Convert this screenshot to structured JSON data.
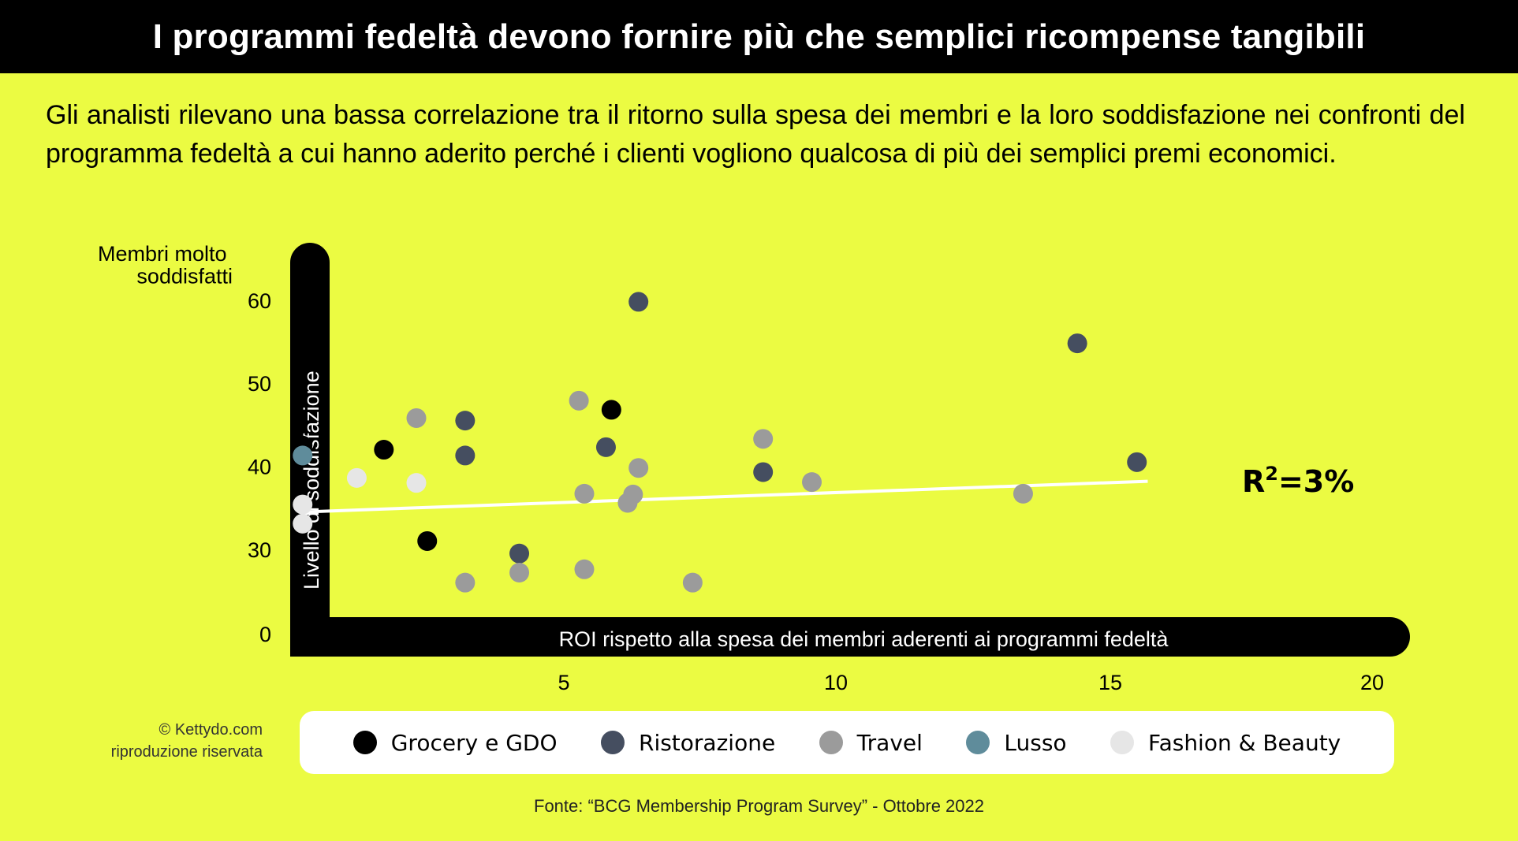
{
  "header": {
    "title": "I programmi fedeltà devono fornire più che semplici ricompense tangibili"
  },
  "subtitle": "Gli analisti rilevano una bassa correlazione tra il ritorno sulla spesa dei membri e la loro soddisfazione nei confronti del programma fedeltà a cui hanno aderito perché i clienti vogliono qualcosa di più dei semplici premi economici.",
  "credit": {
    "line1": "© Kettydo.com",
    "line2": "riproduzione riservata"
  },
  "source": "Fonte: “BCG Membership Program Survey” - Ottobre 2022",
  "chart_data": {
    "type": "scatter",
    "ylabel": "Livello di soddisfazione",
    "xlabel": "ROI rispetto alla spesa dei membri aderenti ai programmi fedeltà",
    "ylabel_top": "Membri molto soddisfatti",
    "xticks": [
      5,
      10,
      15,
      20
    ],
    "yticks": [
      0,
      30,
      40,
      50,
      60
    ],
    "r2_base": "R",
    "r2_sup": "2",
    "r2_rest": "=3%",
    "colors": {
      "Grocery e GDO": "#000000",
      "Ristorazione": "#454e60",
      "Travel": "#9b9b9b",
      "Lusso": "#5f8c9b",
      "Fashion & Beauty": "#e6e6e6"
    },
    "trendline": {
      "x": [
        1.2,
        16.8
      ],
      "y": [
        34.5,
        38.2
      ]
    },
    "series": [
      {
        "name": "Grocery e GDO",
        "points": [
          [
            1.2,
            42.5
          ],
          [
            2.7,
            42.0
          ],
          [
            3.5,
            31.0
          ],
          [
            6.9,
            46.8
          ]
        ]
      },
      {
        "name": "Ristorazione",
        "points": [
          [
            4.2,
            45.5
          ],
          [
            4.2,
            41.3
          ],
          [
            5.2,
            29.5
          ],
          [
            6.8,
            42.3
          ],
          [
            7.4,
            59.8
          ],
          [
            9.7,
            39.3
          ],
          [
            15.5,
            54.8
          ],
          [
            16.6,
            40.5
          ]
        ]
      },
      {
        "name": "Travel",
        "points": [
          [
            3.3,
            45.8
          ],
          [
            4.2,
            26.0
          ],
          [
            5.2,
            27.2
          ],
          [
            6.3,
            47.9
          ],
          [
            6.4,
            36.7
          ],
          [
            6.4,
            27.6
          ],
          [
            7.2,
            35.6
          ],
          [
            7.3,
            36.6
          ],
          [
            7.4,
            39.8
          ],
          [
            8.4,
            26.0
          ],
          [
            9.7,
            43.3
          ],
          [
            10.6,
            38.1
          ],
          [
            14.5,
            36.7
          ]
        ]
      },
      {
        "name": "Lusso",
        "points": [
          [
            1.2,
            41.3
          ]
        ]
      },
      {
        "name": "Fashion & Beauty",
        "points": [
          [
            1.2,
            35.4
          ],
          [
            1.2,
            33.1
          ],
          [
            2.2,
            38.6
          ],
          [
            3.3,
            38.0
          ]
        ]
      }
    ]
  }
}
